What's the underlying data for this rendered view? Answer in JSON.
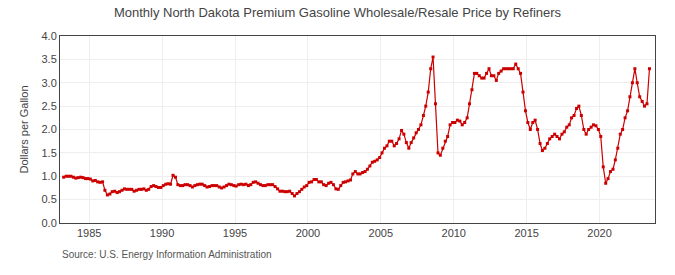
{
  "chart_data": {
    "type": "line",
    "title": "Monthly North Dakota Premium Gasoline Wholesale/Resale Price by Refiners",
    "ylabel": "Dollars per Gallon",
    "source": "Source: U.S. Energy Information Administration",
    "xlim": [
      1983.0,
      2023.8
    ],
    "ylim": [
      0.0,
      4.0
    ],
    "xticks": [
      1985,
      1990,
      1995,
      2000,
      2005,
      2010,
      2015,
      2020
    ],
    "yticks": [
      {
        "value": 0.0,
        "label": "0.0"
      },
      0.5,
      {
        "value": 1.0,
        "label": "1.0"
      },
      1.5,
      {
        "value": 2.0,
        "label": "2.0"
      },
      2.5,
      {
        "value": 3.0,
        "label": "3.0"
      },
      3.5,
      {
        "value": 4.0,
        "label": "4.0"
      }
    ],
    "grid": true,
    "color": "#cc0000",
    "marker": "square",
    "line_style": "solid",
    "x": [
      1983.25,
      1983.42,
      1983.58,
      1983.75,
      1983.92,
      1984.08,
      1984.25,
      1984.42,
      1984.58,
      1984.75,
      1984.92,
      1985.08,
      1985.25,
      1985.42,
      1985.58,
      1985.75,
      1985.92,
      1986.08,
      1986.25,
      1986.42,
      1986.58,
      1986.75,
      1986.92,
      1987.08,
      1987.25,
      1987.42,
      1987.58,
      1987.75,
      1987.92,
      1988.08,
      1988.25,
      1988.42,
      1988.58,
      1988.75,
      1988.92,
      1989.08,
      1989.25,
      1989.42,
      1989.58,
      1989.75,
      1989.92,
      1990.08,
      1990.25,
      1990.42,
      1990.58,
      1990.75,
      1990.92,
      1991.08,
      1991.25,
      1991.42,
      1991.58,
      1991.75,
      1991.92,
      1992.08,
      1992.25,
      1992.42,
      1992.58,
      1992.75,
      1992.92,
      1993.08,
      1993.25,
      1993.42,
      1993.58,
      1993.75,
      1993.92,
      1994.08,
      1994.25,
      1994.42,
      1994.58,
      1994.75,
      1994.92,
      1995.08,
      1995.25,
      1995.42,
      1995.58,
      1995.75,
      1995.92,
      1996.08,
      1996.25,
      1996.42,
      1996.58,
      1996.75,
      1996.92,
      1997.08,
      1997.25,
      1997.42,
      1997.58,
      1997.75,
      1997.92,
      1998.08,
      1998.25,
      1998.42,
      1998.58,
      1998.75,
      1998.92,
      1999.08,
      1999.25,
      1999.42,
      1999.58,
      1999.75,
      1999.92,
      2000.08,
      2000.25,
      2000.42,
      2000.58,
      2000.75,
      2000.92,
      2001.08,
      2001.25,
      2001.42,
      2001.58,
      2001.75,
      2001.92,
      2002.08,
      2002.25,
      2002.42,
      2002.58,
      2002.75,
      2002.92,
      2003.08,
      2003.25,
      2003.42,
      2003.58,
      2003.75,
      2003.92,
      2004.08,
      2004.25,
      2004.42,
      2004.58,
      2004.75,
      2004.92,
      2005.08,
      2005.25,
      2005.42,
      2005.58,
      2005.75,
      2005.92,
      2006.08,
      2006.25,
      2006.42,
      2006.58,
      2006.75,
      2006.92,
      2007.08,
      2007.25,
      2007.42,
      2007.58,
      2007.75,
      2007.92,
      2008.08,
      2008.25,
      2008.42,
      2008.58,
      2008.75,
      2008.92,
      2009.08,
      2009.25,
      2009.42,
      2009.58,
      2009.75,
      2009.92,
      2010.08,
      2010.25,
      2010.42,
      2010.58,
      2010.75,
      2010.92,
      2011.08,
      2011.25,
      2011.42,
      2011.58,
      2011.75,
      2011.92,
      2012.08,
      2012.25,
      2012.42,
      2012.58,
      2012.75,
      2012.92,
      2013.08,
      2013.25,
      2013.42,
      2013.58,
      2013.75,
      2013.92,
      2014.08,
      2014.25,
      2014.42,
      2014.58,
      2014.75,
      2014.92,
      2015.08,
      2015.25,
      2015.42,
      2015.58,
      2015.75,
      2015.92,
      2016.08,
      2016.25,
      2016.42,
      2016.58,
      2016.75,
      2016.92,
      2017.08,
      2017.25,
      2017.42,
      2017.58,
      2017.75,
      2017.92,
      2018.08,
      2018.25,
      2018.42,
      2018.58,
      2018.75,
      2018.92,
      2019.08,
      2019.25,
      2019.42,
      2019.58,
      2019.75,
      2019.92,
      2020.08,
      2020.25,
      2020.42,
      2020.58,
      2020.75,
      2020.92,
      2021.08,
      2021.25,
      2021.42,
      2021.58,
      2021.75,
      2021.92,
      2022.08,
      2022.25,
      2022.42,
      2022.58,
      2022.75,
      2022.92,
      2023.08,
      2023.25,
      2023.42
    ],
    "values": [
      0.98,
      1.0,
      1.0,
      1.0,
      0.98,
      0.96,
      0.97,
      0.98,
      0.97,
      0.95,
      0.95,
      0.94,
      0.9,
      0.91,
      0.88,
      0.87,
      0.88,
      0.7,
      0.6,
      0.62,
      0.67,
      0.68,
      0.65,
      0.67,
      0.7,
      0.73,
      0.72,
      0.72,
      0.72,
      0.68,
      0.7,
      0.72,
      0.72,
      0.73,
      0.7,
      0.72,
      0.78,
      0.8,
      0.78,
      0.76,
      0.76,
      0.8,
      0.83,
      0.84,
      0.83,
      1.02,
      0.98,
      0.82,
      0.8,
      0.8,
      0.82,
      0.82,
      0.8,
      0.77,
      0.8,
      0.82,
      0.83,
      0.83,
      0.8,
      0.77,
      0.78,
      0.8,
      0.8,
      0.8,
      0.77,
      0.75,
      0.77,
      0.8,
      0.83,
      0.82,
      0.8,
      0.79,
      0.82,
      0.83,
      0.82,
      0.83,
      0.8,
      0.82,
      0.87,
      0.88,
      0.85,
      0.82,
      0.8,
      0.8,
      0.82,
      0.82,
      0.82,
      0.78,
      0.73,
      0.68,
      0.68,
      0.67,
      0.67,
      0.68,
      0.63,
      0.58,
      0.63,
      0.67,
      0.72,
      0.77,
      0.8,
      0.87,
      0.88,
      0.93,
      0.93,
      0.88,
      0.88,
      0.82,
      0.8,
      0.85,
      0.87,
      0.82,
      0.73,
      0.72,
      0.8,
      0.87,
      0.88,
      0.9,
      0.92,
      1.05,
      1.1,
      1.05,
      1.05,
      1.08,
      1.1,
      1.15,
      1.22,
      1.3,
      1.32,
      1.35,
      1.4,
      1.5,
      1.6,
      1.65,
      1.75,
      1.75,
      1.65,
      1.7,
      1.8,
      1.98,
      1.9,
      1.72,
      1.6,
      1.72,
      1.82,
      1.93,
      2.0,
      2.1,
      2.3,
      2.5,
      2.8,
      3.3,
      3.55,
      2.55,
      1.5,
      1.45,
      1.6,
      1.75,
      1.85,
      2.1,
      2.15,
      2.15,
      2.2,
      2.18,
      2.1,
      2.15,
      2.25,
      2.55,
      2.85,
      3.2,
      3.2,
      3.15,
      3.1,
      3.1,
      3.2,
      3.3,
      3.15,
      3.15,
      3.05,
      3.2,
      3.25,
      3.3,
      3.3,
      3.3,
      3.3,
      3.3,
      3.4,
      3.3,
      3.2,
      2.8,
      2.4,
      2.15,
      2.0,
      2.15,
      2.2,
      2.0,
      1.7,
      1.55,
      1.6,
      1.7,
      1.8,
      1.85,
      1.9,
      1.85,
      1.8,
      1.9,
      1.95,
      2.05,
      2.1,
      2.25,
      2.3,
      2.45,
      2.5,
      2.3,
      2.0,
      1.9,
      2.0,
      2.05,
      2.1,
      2.08,
      2.0,
      1.85,
      1.2,
      0.85,
      0.95,
      1.1,
      1.15,
      1.35,
      1.6,
      1.9,
      2.0,
      2.25,
      2.4,
      2.7,
      3.0,
      3.3,
      3.0,
      2.7,
      2.6,
      2.5,
      2.55,
      3.3
    ]
  }
}
